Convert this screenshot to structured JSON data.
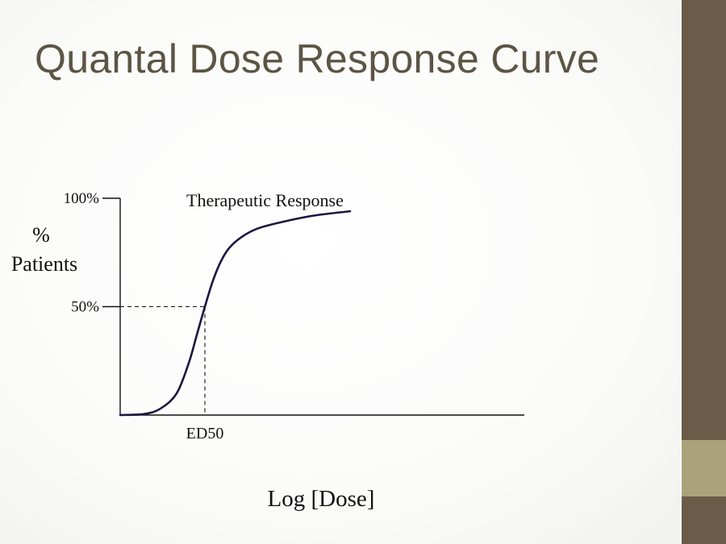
{
  "slide": {
    "title": "Quantal Dose Response Curve"
  },
  "colors": {
    "sidebar_dark": "#6b5c49",
    "sidebar_accent": "#a9a27a",
    "title_text": "#5c5544",
    "curve": "#1c1640"
  },
  "chart_data": {
    "type": "line",
    "xlabel": "Log [Dose]",
    "ylabel_lines": [
      "%",
      "Patients"
    ],
    "y_ticks": [
      {
        "value": 100,
        "label": "100%"
      },
      {
        "value": 50,
        "label": "50%"
      }
    ],
    "ylim": [
      0,
      100
    ],
    "xlim": [
      0,
      1
    ],
    "grid": false,
    "series": [
      {
        "name": "Therapeutic Response",
        "x": [
          0.0,
          0.06,
          0.1,
          0.14,
          0.17,
          0.19,
          0.21,
          0.23,
          0.25,
          0.27,
          0.3,
          0.34,
          0.4,
          0.48,
          0.57
        ],
        "y": [
          0,
          0.5,
          3,
          10,
          24,
          37,
          50,
          62,
          71,
          77,
          82,
          86,
          89,
          92,
          94
        ]
      }
    ],
    "annotations": [
      {
        "label": "ED50",
        "x": 0.21,
        "y": 50
      }
    ]
  }
}
